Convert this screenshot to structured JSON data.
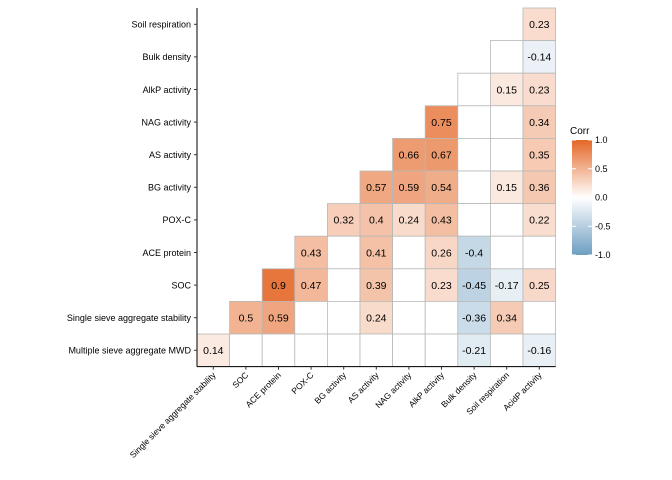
{
  "chart_data": {
    "type": "heatmap",
    "row_labels": [
      "Soil respiration",
      "Bulk density",
      "AlkP activity",
      "NAG activity",
      "AS activity",
      "BG activity",
      "POX-C",
      "ACE protein",
      "SOC",
      "Single sieve aggregate stability",
      "Multiple sieve aggregate MWD"
    ],
    "column_labels": [
      "Single sieve aggregate stability",
      "SOC",
      "ACE protein",
      "POX-C",
      "BG activity",
      "AS activity",
      "NAG activity",
      "AlkP activity",
      "Bulk density",
      "Soil respiration",
      "AcidP activity"
    ],
    "cells": [
      {
        "row": 0,
        "col": 10,
        "value": 0.23
      },
      {
        "row": 1,
        "col": 9,
        "value": null
      },
      {
        "row": 1,
        "col": 10,
        "value": -0.14
      },
      {
        "row": 2,
        "col": 8,
        "value": null
      },
      {
        "row": 2,
        "col": 9,
        "value": 0.15
      },
      {
        "row": 2,
        "col": 10,
        "value": 0.23
      },
      {
        "row": 3,
        "col": 7,
        "value": 0.75
      },
      {
        "row": 3,
        "col": 8,
        "value": null
      },
      {
        "row": 3,
        "col": 9,
        "value": null
      },
      {
        "row": 3,
        "col": 10,
        "value": 0.34
      },
      {
        "row": 4,
        "col": 6,
        "value": 0.66
      },
      {
        "row": 4,
        "col": 7,
        "value": 0.67
      },
      {
        "row": 4,
        "col": 8,
        "value": null
      },
      {
        "row": 4,
        "col": 9,
        "value": null
      },
      {
        "row": 4,
        "col": 10,
        "value": 0.35
      },
      {
        "row": 5,
        "col": 5,
        "value": 0.57
      },
      {
        "row": 5,
        "col": 6,
        "value": 0.59
      },
      {
        "row": 5,
        "col": 7,
        "value": 0.54
      },
      {
        "row": 5,
        "col": 8,
        "value": null
      },
      {
        "row": 5,
        "col": 9,
        "value": 0.15
      },
      {
        "row": 5,
        "col": 10,
        "value": 0.36
      },
      {
        "row": 6,
        "col": 4,
        "value": 0.32
      },
      {
        "row": 6,
        "col": 5,
        "value": 0.4
      },
      {
        "row": 6,
        "col": 6,
        "value": 0.24
      },
      {
        "row": 6,
        "col": 7,
        "value": 0.43
      },
      {
        "row": 6,
        "col": 8,
        "value": null
      },
      {
        "row": 6,
        "col": 9,
        "value": null
      },
      {
        "row": 6,
        "col": 10,
        "value": 0.22
      },
      {
        "row": 7,
        "col": 3,
        "value": 0.43
      },
      {
        "row": 7,
        "col": 4,
        "value": null
      },
      {
        "row": 7,
        "col": 5,
        "value": 0.41
      },
      {
        "row": 7,
        "col": 6,
        "value": null
      },
      {
        "row": 7,
        "col": 7,
        "value": 0.26
      },
      {
        "row": 7,
        "col": 8,
        "value": -0.4
      },
      {
        "row": 7,
        "col": 9,
        "value": null
      },
      {
        "row": 7,
        "col": 10,
        "value": null
      },
      {
        "row": 8,
        "col": 2,
        "value": 0.9
      },
      {
        "row": 8,
        "col": 3,
        "value": 0.47
      },
      {
        "row": 8,
        "col": 4,
        "value": null
      },
      {
        "row": 8,
        "col": 5,
        "value": 0.39
      },
      {
        "row": 8,
        "col": 6,
        "value": null
      },
      {
        "row": 8,
        "col": 7,
        "value": 0.23
      },
      {
        "row": 8,
        "col": 8,
        "value": -0.45
      },
      {
        "row": 8,
        "col": 9,
        "value": -0.17
      },
      {
        "row": 8,
        "col": 10,
        "value": 0.25
      },
      {
        "row": 9,
        "col": 1,
        "value": 0.5
      },
      {
        "row": 9,
        "col": 2,
        "value": 0.59
      },
      {
        "row": 9,
        "col": 3,
        "value": null
      },
      {
        "row": 9,
        "col": 4,
        "value": null
      },
      {
        "row": 9,
        "col": 5,
        "value": 0.24
      },
      {
        "row": 9,
        "col": 6,
        "value": null
      },
      {
        "row": 9,
        "col": 7,
        "value": null
      },
      {
        "row": 9,
        "col": 8,
        "value": -0.36
      },
      {
        "row": 9,
        "col": 9,
        "value": 0.34
      },
      {
        "row": 9,
        "col": 10,
        "value": null
      },
      {
        "row": 10,
        "col": 0,
        "value": 0.14
      },
      {
        "row": 10,
        "col": 1,
        "value": null
      },
      {
        "row": 10,
        "col": 2,
        "value": null
      },
      {
        "row": 10,
        "col": 3,
        "value": null
      },
      {
        "row": 10,
        "col": 4,
        "value": null
      },
      {
        "row": 10,
        "col": 5,
        "value": null
      },
      {
        "row": 10,
        "col": 6,
        "value": null
      },
      {
        "row": 10,
        "col": 7,
        "value": null
      },
      {
        "row": 10,
        "col": 8,
        "value": -0.21
      },
      {
        "row": 10,
        "col": 9,
        "value": null
      },
      {
        "row": 10,
        "col": 10,
        "value": -0.16
      }
    ],
    "legend": {
      "title": "Corr",
      "ticks": [
        "1.0",
        "0.5",
        "0.0",
        "-0.5",
        "-1.0"
      ],
      "tick_values": [
        1.0,
        0.5,
        0.0,
        -0.5,
        -1.0
      ],
      "placement": "right"
    },
    "color_scale": {
      "low": "#6d9ec1",
      "mid": "#ffffff",
      "high": "#e46726",
      "limits": [
        -1,
        1
      ]
    },
    "grid_color": "#b8b8b8",
    "axis_color": "#000000",
    "title": "",
    "xlabel": "",
    "ylabel": ""
  }
}
